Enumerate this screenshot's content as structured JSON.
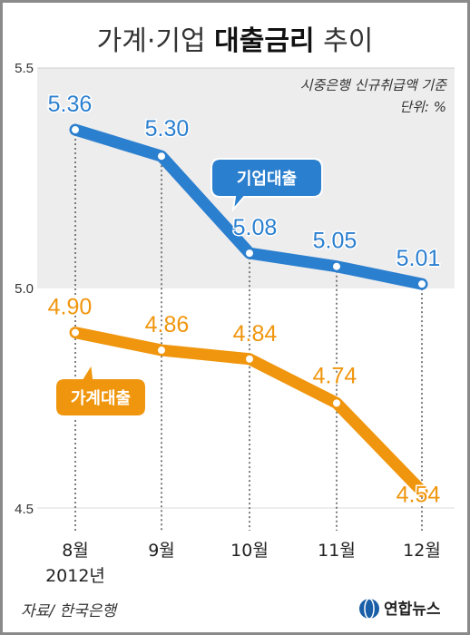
{
  "header": {
    "title_part1": "가계·기업 ",
    "title_bold": "대출금리",
    "title_part2": " 추이"
  },
  "notes": {
    "basis": "시중은행 신규취급액 기준",
    "unit": "단위: %"
  },
  "footer": {
    "source": "자료/ 한국은행",
    "brand": "연합뉴스"
  },
  "chart_data": {
    "type": "line",
    "categories": [
      "8월",
      "9월",
      "10월",
      "11월",
      "12월"
    ],
    "year_label": "2012년",
    "y_ticks": [
      "5.5",
      "5.0",
      "4.5"
    ],
    "ylim": [
      4.5,
      5.5
    ],
    "grid": false,
    "series": [
      {
        "name": "기업대출",
        "values": [
          5.36,
          5.3,
          5.08,
          5.05,
          5.01
        ],
        "labels": [
          "5.36",
          "5.30",
          "5.08",
          "5.05",
          "5.01"
        ],
        "color": "#2b7fcf"
      },
      {
        "name": "가계대출",
        "values": [
          4.9,
          4.86,
          4.84,
          4.74,
          4.54
        ],
        "labels": [
          "4.90",
          "4.86",
          "4.84",
          "4.74",
          "4.54"
        ],
        "color": "#f0960e"
      }
    ]
  },
  "colors": {
    "band": "#ededed",
    "guide": "#555555",
    "brand_blue": "#1a5ea8"
  }
}
